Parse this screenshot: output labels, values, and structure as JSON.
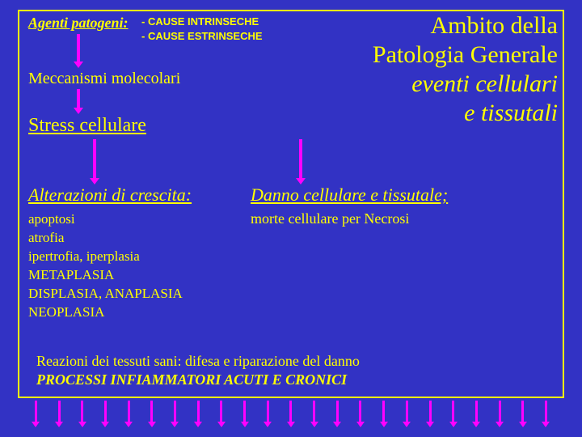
{
  "colors": {
    "background": "#3232c4",
    "text": "#ffff00",
    "accent": "#ff00ff",
    "border": "#ffff00"
  },
  "topLeft": {
    "agenti": "Agenti patogeni:",
    "cause1": "- CAUSE INTRINSECHE",
    "cause2": "- CAUSE ESTRINSECHE"
  },
  "title": {
    "line1": "Ambito della",
    "line2": "Patologia Generale",
    "line3": "eventi cellulari",
    "line4": "e tissutali"
  },
  "steps": {
    "meccanismi": "Meccanismi molecolari",
    "stress": "Stress cellulare"
  },
  "alterazioni": {
    "title": "Alterazioni di crescita:",
    "items": [
      "apoptosi",
      "atrofia",
      "ipertrofia, iperplasia",
      "METAPLASIA",
      "DISPLASIA, ANAPLASIA",
      "NEOPLASIA"
    ]
  },
  "danno": {
    "title": "Danno cellulare e tissutale;",
    "sub": "morte cellulare per Necrosi"
  },
  "reazioni": {
    "line1": "Reazioni dei tessuti sani: difesa e riparazione del danno",
    "line2": "PROCESSI INFIAMMATORI ACUTI E CRONICI"
  },
  "bottomArrowCount": 23
}
